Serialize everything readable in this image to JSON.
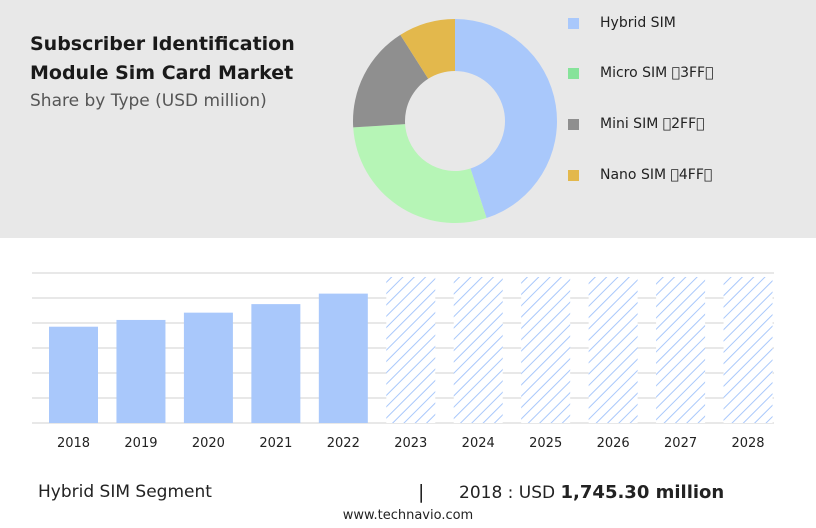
{
  "header": {
    "title": "Subscriber Identification Module Sim Card Market",
    "subtitle": "Share by Type (USD million)"
  },
  "colors": {
    "hybrid": "#a9c8fb",
    "micro": "#b6f5b6",
    "mini": "#8f8f8f",
    "nano": "#e3b84c",
    "forecast_hatch": "#a9c8fb",
    "grid": "#d0d0d0"
  },
  "chart_data": [
    {
      "type": "pie",
      "donut": true,
      "labels": [
        "Hybrid SIM",
        "Micro SIM 3FF",
        "Mini SIM 2FF",
        "Nano SIM 4FF"
      ],
      "values": [
        45,
        29,
        17,
        9
      ],
      "legend_position": "right"
    },
    {
      "type": "bar",
      "categories": [
        "2018",
        "2019",
        "2020",
        "2021",
        "2022",
        "2023",
        "2024",
        "2025",
        "2026",
        "2027",
        "2028"
      ],
      "values": [
        1745.3,
        1868,
        2000,
        2155,
        2345,
        null,
        null,
        null,
        null,
        null,
        null
      ],
      "forecast_categories": [
        "2023",
        "2024",
        "2025",
        "2026",
        "2027",
        "2028"
      ],
      "ylim": [
        0,
        2900
      ],
      "grid": true
    }
  ],
  "footer": {
    "segment": "Hybrid SIM Segment",
    "divider": "|",
    "stat_prefix": "2018 : USD",
    "stat_value": "1,745.30 million",
    "url": "www.technavio.com"
  }
}
